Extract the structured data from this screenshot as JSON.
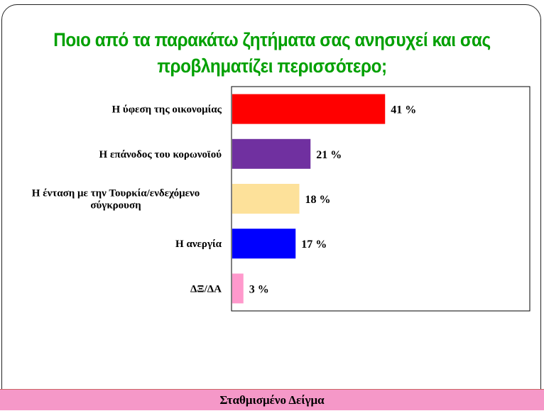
{
  "title": {
    "line1": "Ποιο από τα παρακάτω ζητήματα σας ανησυχεί και σας",
    "line2": "προβληματίζει περισσότερο;"
  },
  "footer": "Σταθμισμένο Δείγμα",
  "chart_data": {
    "type": "bar",
    "orientation": "horizontal",
    "categories": [
      [
        "Η ύφεση της οικονομίας"
      ],
      [
        "Η επάνοδος του κορωνοϊού"
      ],
      [
        "Η ένταση με την Τουρκία/ενδεχόμενο",
        "σύγκρουση"
      ],
      [
        "Η ανεργία"
      ],
      [
        "ΔΞ/ΔΑ"
      ]
    ],
    "values": [
      41,
      21,
      18,
      17,
      3
    ],
    "value_labels": [
      "41 %",
      "21 %",
      "18 %",
      "17 %",
      "3 %"
    ],
    "colors": [
      "#ff0000",
      "#7030a0",
      "#fde19a",
      "#0000ff",
      "#ff99cc"
    ],
    "xlim": [
      0,
      80
    ],
    "grid": false,
    "legend": "none"
  }
}
